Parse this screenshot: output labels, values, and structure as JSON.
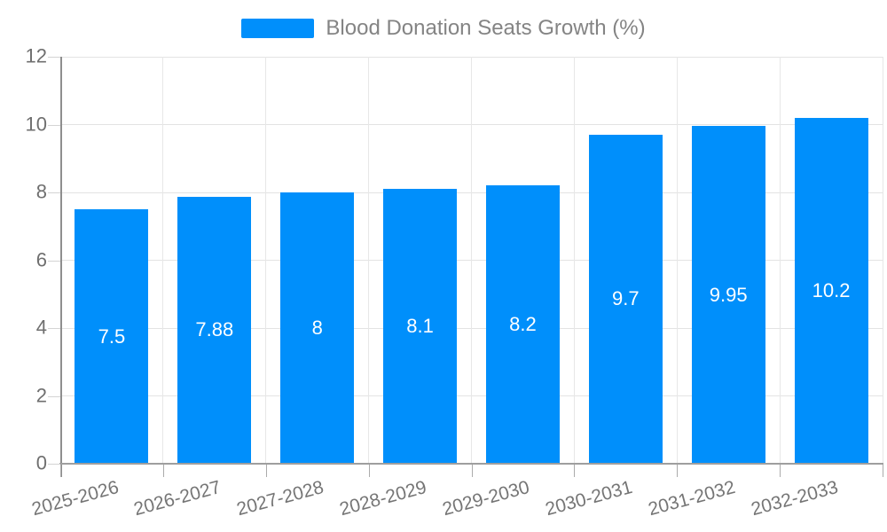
{
  "legend": {
    "label": "Blood Donation Seats Growth (%)"
  },
  "chart_data": {
    "type": "bar",
    "title": "",
    "series_name": "Blood Donation Seats Growth (%)",
    "categories": [
      "2025-2026",
      "2026-2027",
      "2027-2028",
      "2028-2029",
      "2029-2030",
      "2030-2031",
      "2031-2032",
      "2032-2033"
    ],
    "values": [
      7.5,
      7.88,
      8,
      8.1,
      8.2,
      9.7,
      9.95,
      10.2
    ],
    "data_labels": [
      "7.5",
      "7.88",
      "8",
      "8.1",
      "8.2",
      "9.7",
      "9.95",
      "10.2"
    ],
    "xlabel": "",
    "ylabel": "",
    "ylim": [
      0,
      12
    ],
    "yticks": [
      0,
      2,
      4,
      6,
      8,
      10,
      12
    ],
    "grid": true,
    "legend_position": "top",
    "x_label_rotation_deg": -15
  },
  "colors": {
    "bar": "#008FFB",
    "bar_label": "#ffffff",
    "legend_text": "#848484",
    "y_label": "#6f6f6f",
    "x_label": "#757575",
    "gridline": "#e7e7e7",
    "y_axis_line": "#8e8e8e",
    "x_axis_line": "#9e9e9e",
    "background": "#ffffff"
  }
}
